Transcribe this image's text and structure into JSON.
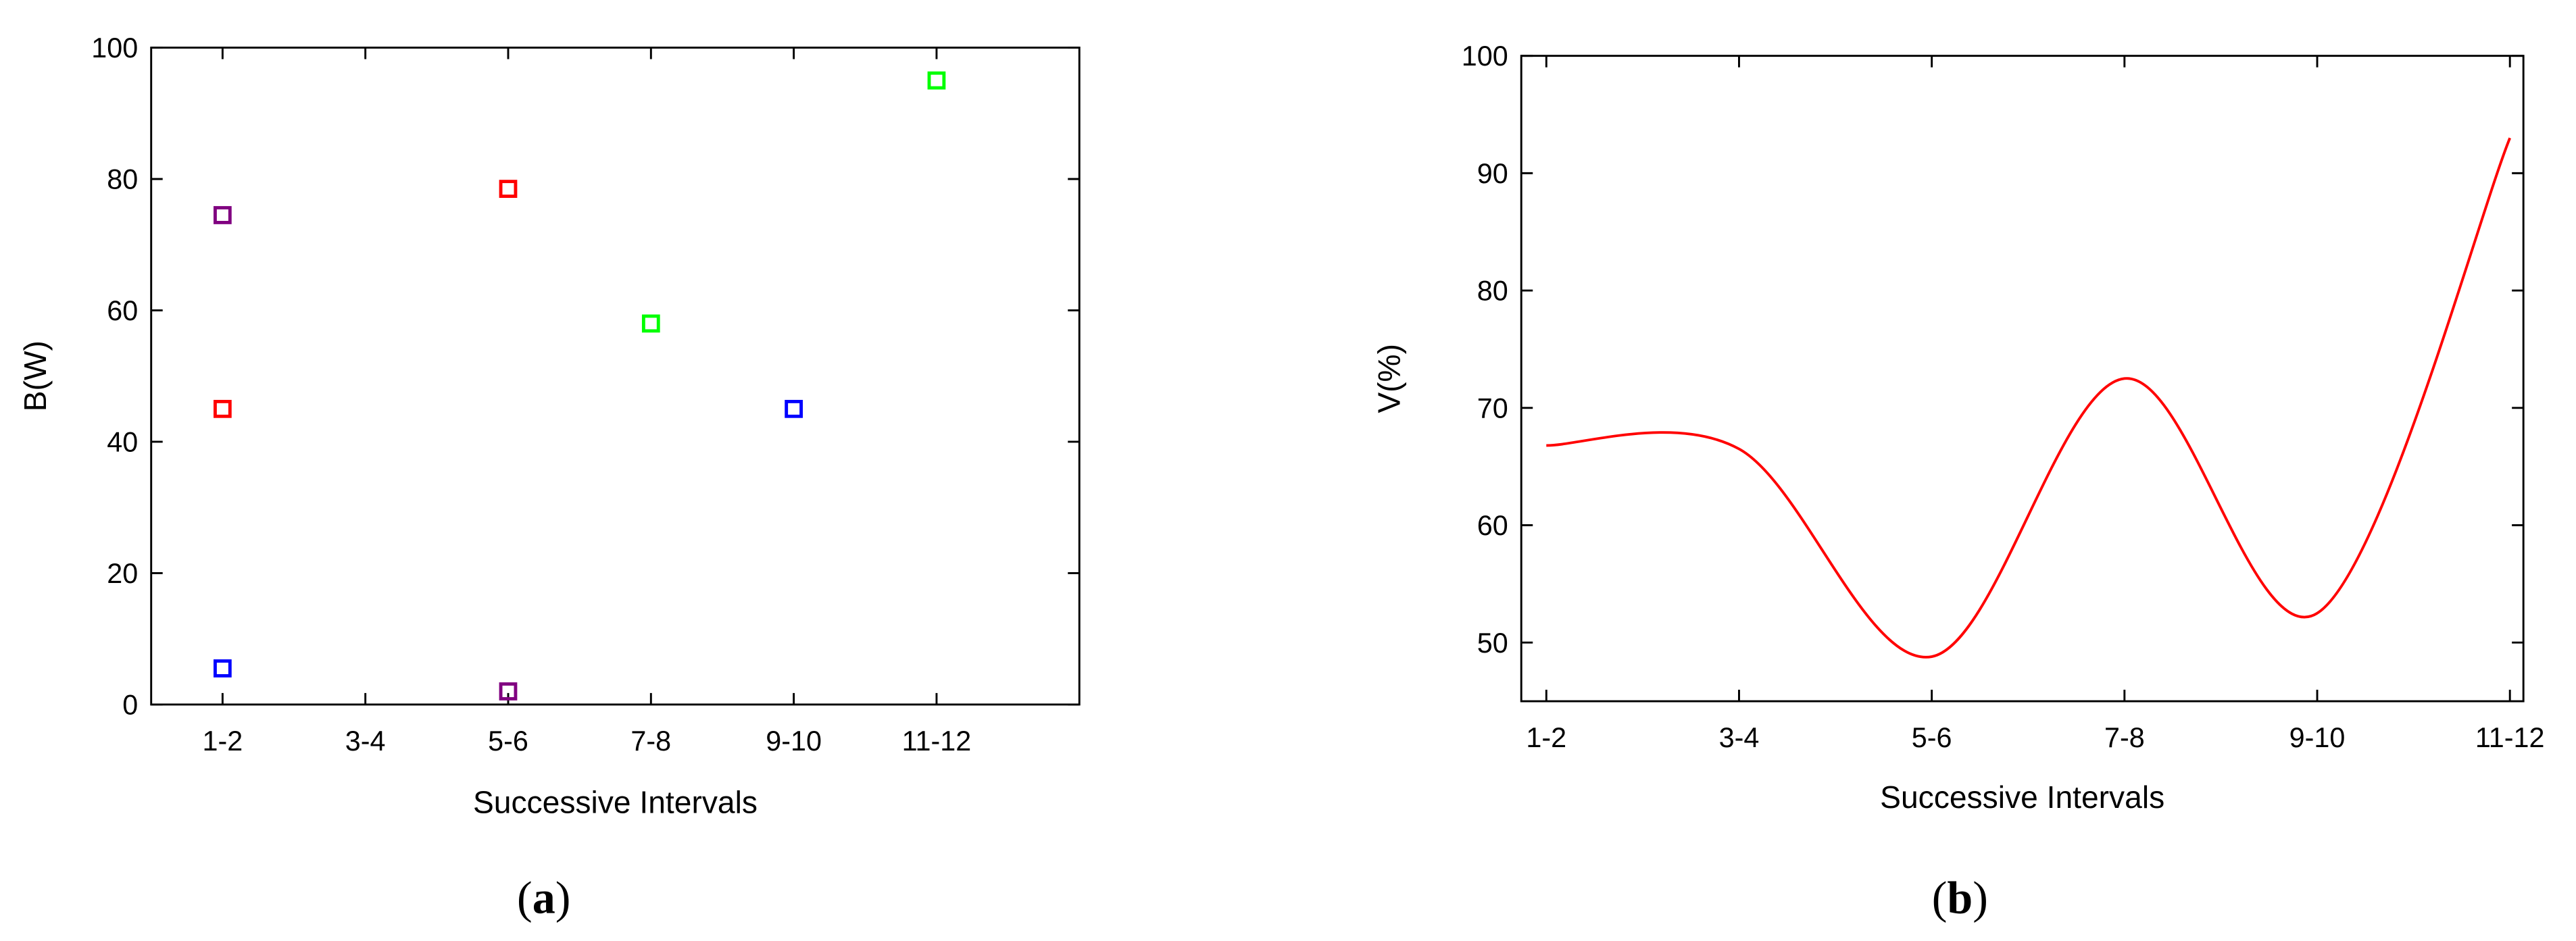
{
  "chart_data": [
    {
      "type": "scatter",
      "caption": "a",
      "y_label": "B(W)",
      "x_label": "Successive Intervals",
      "categories": [
        "1-2",
        "3-4",
        "5-6",
        "7-8",
        "9-10",
        "11-12"
      ],
      "series": [
        {
          "color": "#ff0000",
          "values": [
            45,
            null,
            78.5,
            null,
            null,
            null
          ]
        },
        {
          "color": "#800080",
          "values": [
            74.5,
            null,
            2,
            null,
            null,
            null
          ]
        },
        {
          "color": "#0000ff",
          "values": [
            5.5,
            null,
            null,
            null,
            45,
            null
          ]
        },
        {
          "color": "#00ff00",
          "values": [
            null,
            null,
            null,
            58,
            null,
            95
          ]
        }
      ],
      "ylim": [
        0,
        100
      ],
      "yticks": [
        0,
        20,
        40,
        60,
        80,
        100
      ]
    },
    {
      "type": "line",
      "caption": "b",
      "y_label": "V(%)",
      "x_label": "Successive Intervals",
      "categories": [
        "1-2",
        "3-4",
        "5-6",
        "7-8",
        "9-10",
        "11-12"
      ],
      "series": [
        {
          "color": "#ff0000",
          "values": [
            66.8,
            66.5,
            48.8,
            72.5,
            52.5,
            93
          ]
        }
      ],
      "ylim": [
        45,
        100
      ],
      "yticks": [
        50,
        60,
        70,
        80,
        90,
        100
      ]
    }
  ]
}
